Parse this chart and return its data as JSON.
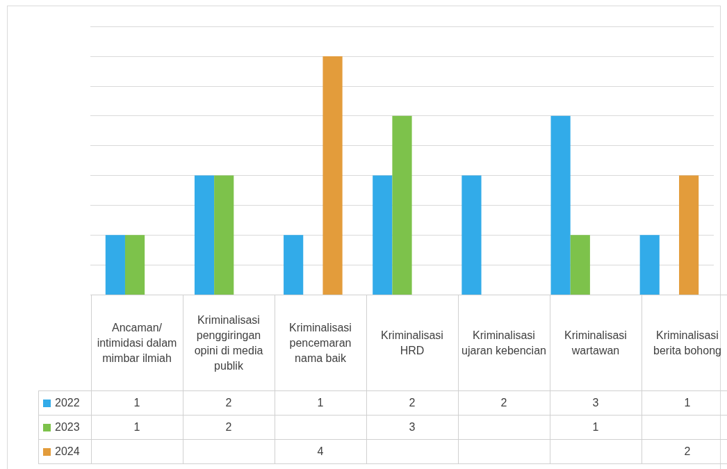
{
  "chart_data": {
    "type": "bar",
    "categories": [
      "Ancaman/ intimidasi dalam mimbar ilmiah",
      "Kriminalisasi penggiringan opini di media publik",
      "Kriminalisasi pencemaran nama baik",
      "Kriminalisasi HRD",
      "Kriminalisasi ujaran kebencian",
      "Kriminalisasi wartawan",
      "Kriminalisasi berita bohong"
    ],
    "series": [
      {
        "name": "2022",
        "color": "#32abe9",
        "values": [
          1,
          2,
          1,
          2,
          2,
          3,
          1
        ]
      },
      {
        "name": "2023",
        "color": "#7dc24b",
        "values": [
          1,
          2,
          null,
          3,
          null,
          1,
          null
        ]
      },
      {
        "name": "2024",
        "color": "#e39c3b",
        "values": [
          null,
          null,
          4,
          null,
          null,
          null,
          2
        ]
      }
    ],
    "ylim": [
      0,
      4.5
    ],
    "yticks": [
      {
        "value": 0,
        "label": null
      },
      {
        "value": 0.5,
        "label": null
      },
      {
        "value": 1,
        "label": null
      },
      {
        "value": 1.5,
        "label": null
      },
      {
        "value": 2,
        "label": null
      },
      {
        "value": 2.5,
        "label": null
      },
      {
        "value": 3,
        "label": null
      },
      {
        "value": 3.5,
        "label": null
      },
      {
        "value": 4,
        "label": null
      },
      {
        "value": 4.5,
        "label": null
      }
    ],
    "grid": "y",
    "legend": "bottom",
    "data_labels": true
  }
}
